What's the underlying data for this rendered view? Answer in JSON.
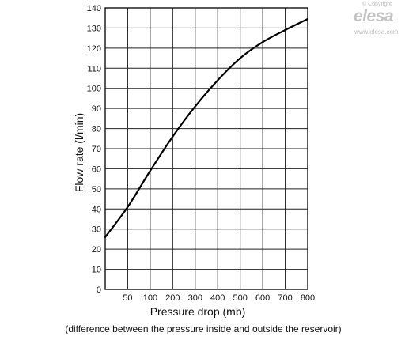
{
  "chart_data": {
    "type": "line",
    "xlabel": "Pressure drop (mb)",
    "xnote": "(difference between the pressure inside and outside the reservoir)",
    "ylabel": "Flow rate (l/min)",
    "xticks": [
      50,
      100,
      200,
      300,
      400,
      500,
      600,
      700,
      800
    ],
    "yticks": [
      0,
      10,
      20,
      30,
      40,
      50,
      60,
      70,
      80,
      90,
      100,
      110,
      120,
      130,
      140
    ],
    "ylim": [
      0,
      140
    ],
    "grid": true,
    "series": [
      {
        "x": [
          0,
          50,
          100,
          200,
          300,
          400,
          500,
          600,
          700,
          800
        ],
        "y": [
          26,
          41,
          59,
          76,
          91,
          104,
          115,
          123,
          129,
          134.5
        ]
      }
    ]
  },
  "watermark": {
    "copyright": "© Copyright",
    "brand": "elesa",
    "website": "www.elesa.com"
  }
}
